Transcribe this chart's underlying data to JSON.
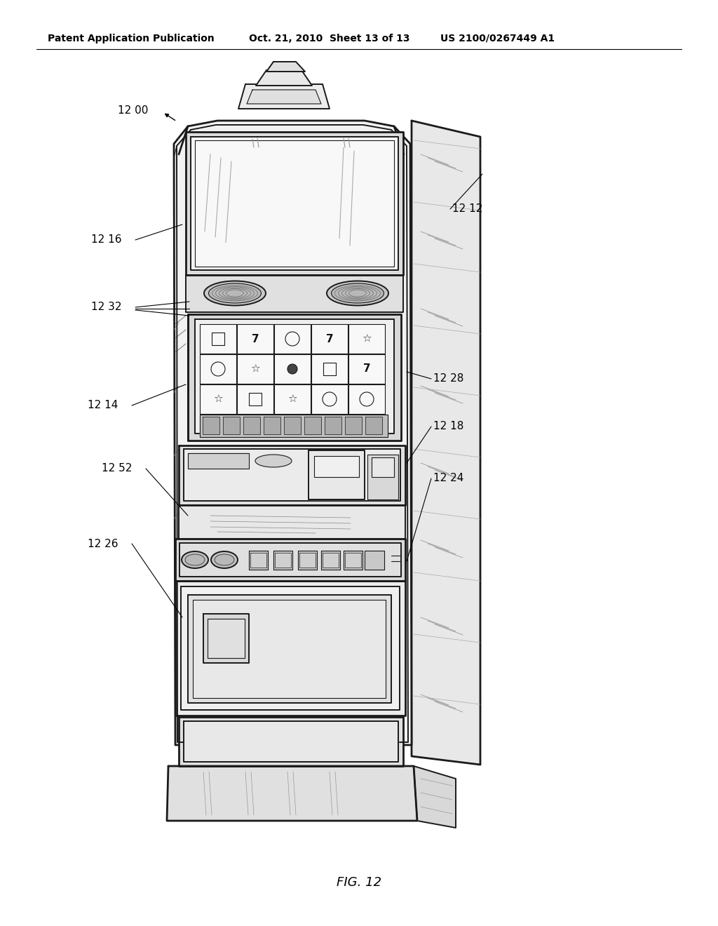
{
  "bg_color": "#ffffff",
  "header_left": "Patent Application Publication",
  "header_mid": "Oct. 21, 2010  Sheet 13 of 13",
  "header_right": "US 2100/0267449 A1",
  "figure_label": "FIG. 12",
  "line_color": "#1a1a1a",
  "lw_main": 2.0,
  "lw_med": 1.4,
  "lw_thin": 0.8,
  "lw_fine": 0.5
}
